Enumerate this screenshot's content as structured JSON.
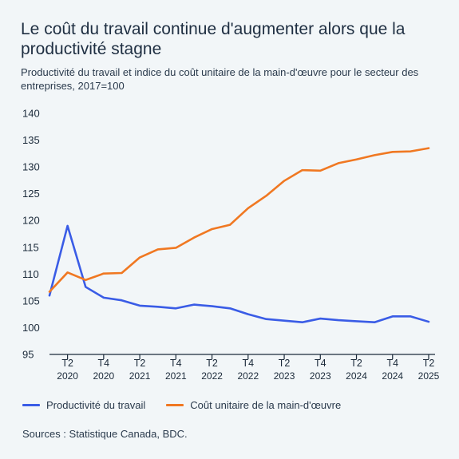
{
  "title": "Le coût du travail continue d'augmenter alors que la productivité stagne",
  "subtitle": "Productivité du travail et indice du coût unitaire de la main-d'œuvre pour le secteur des entreprises, 2017=100",
  "source": "Sources : Statistique Canada, BDC.",
  "colors": {
    "productivity": "#3a5ce6",
    "labour_cost": "#f07822",
    "axis": "#1b2a3a"
  },
  "chart_data": {
    "type": "line",
    "ylim": [
      95,
      140
    ],
    "yticks": [
      95,
      100,
      105,
      110,
      115,
      120,
      125,
      130,
      135,
      140
    ],
    "x_labels": [
      {
        "q": "T2",
        "y": "2020"
      },
      {
        "q": "T4",
        "y": "2020"
      },
      {
        "q": "T2",
        "y": "2021"
      },
      {
        "q": "T4",
        "y": "2021"
      },
      {
        "q": "T2",
        "y": "2022"
      },
      {
        "q": "T4",
        "y": "2022"
      },
      {
        "q": "T2",
        "y": "2023"
      },
      {
        "q": "T4",
        "y": "2023"
      },
      {
        "q": "T2",
        "y": "2024"
      },
      {
        "q": "T4",
        "y": "2024"
      },
      {
        "q": "T2",
        "y": "2025"
      }
    ],
    "quarters": [
      "T1 2020",
      "T2 2020",
      "T3 2020",
      "T4 2020",
      "T1 2021",
      "T2 2021",
      "T3 2021",
      "T4 2021",
      "T1 2022",
      "T2 2022",
      "T3 2022",
      "T4 2022",
      "T1 2023",
      "T2 2023",
      "T3 2023",
      "T4 2023",
      "T1 2024",
      "T2 2024",
      "T3 2024",
      "T4 2024",
      "T1 2025",
      "T2 2025"
    ],
    "series": [
      {
        "name": "Productivité du travail",
        "color_key": "productivity",
        "values": [
          106.0,
          119.0,
          107.6,
          105.6,
          105.1,
          104.1,
          103.9,
          103.6,
          104.3,
          104.0,
          103.6,
          102.5,
          101.6,
          101.3,
          101.0,
          101.7,
          101.4,
          101.2,
          101.0,
          102.1,
          102.1,
          101.1
        ]
      },
      {
        "name": "Coût unitaire de la main-d'œuvre",
        "color_key": "labour_cost",
        "values": [
          106.7,
          110.3,
          108.9,
          110.1,
          110.2,
          113.1,
          114.6,
          114.9,
          116.8,
          118.4,
          119.2,
          122.3,
          124.6,
          127.4,
          129.4,
          129.3,
          130.7,
          131.4,
          132.2,
          132.8,
          132.9,
          133.5
        ]
      }
    ],
    "grid": false,
    "legend_position": "bottom-left"
  }
}
